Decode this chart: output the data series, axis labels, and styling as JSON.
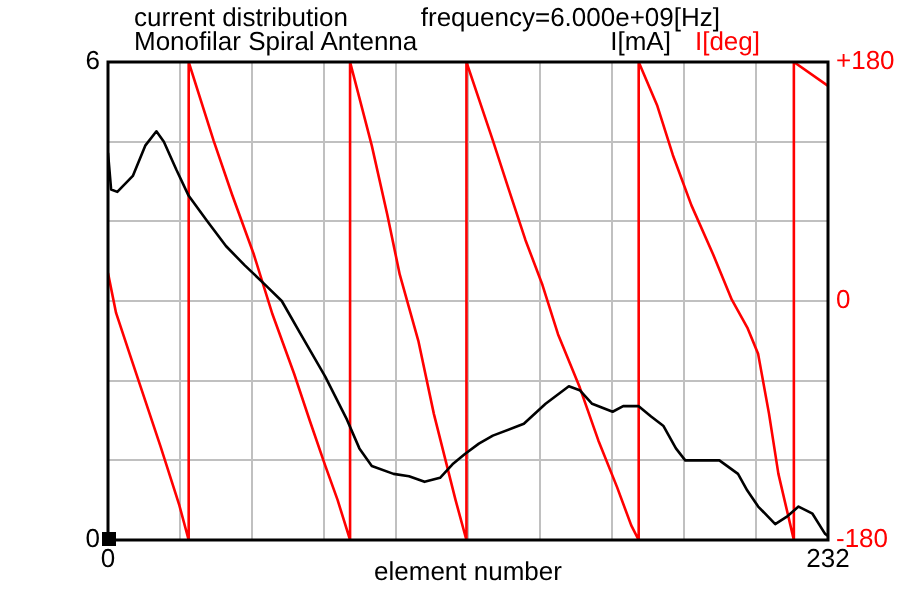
{
  "chart_data": {
    "type": "line",
    "title": "current distribution",
    "subtitle": "Monofilar Spiral Antenna",
    "annotations": [
      "frequency=6.000e+09[Hz]"
    ],
    "xlabel": "element number",
    "xlim": [
      0,
      232
    ],
    "xticks": [
      0,
      {
        "value": 23.2,
        "label": null
      },
      {
        "value": 46.4,
        "label": null
      },
      {
        "value": 69.6,
        "label": null
      },
      {
        "value": 92.8,
        "label": null
      },
      {
        "value": 116,
        "label": null
      },
      {
        "value": 139.2,
        "label": null
      },
      {
        "value": 162.4,
        "label": null
      },
      {
        "value": 185.6,
        "label": null
      },
      {
        "value": 208.8,
        "label": null
      },
      232
    ],
    "ylim": [
      0,
      6
    ],
    "yticks": [
      0,
      {
        "value": 1,
        "label": null
      },
      {
        "value": 2,
        "label": null
      },
      {
        "value": 3,
        "label": null
      },
      {
        "value": 4,
        "label": null
      },
      {
        "value": 5,
        "label": null
      },
      6
    ],
    "y2lim": [
      -180,
      180
    ],
    "y2ticks": [
      -180,
      0,
      {
        "value": 180,
        "label": "+180"
      }
    ],
    "grid": true,
    "legend": "top right",
    "marker": "none",
    "line_style": "solid",
    "series": [
      {
        "name": "I[mA]",
        "color": "#000000",
        "x": [
          0,
          1,
          3,
          8,
          12,
          15.6,
          18,
          22,
          26,
          32,
          38,
          44,
          51,
          56,
          62,
          70,
          77,
          81,
          85,
          92,
          97,
          102,
          107,
          111,
          115,
          119.5,
          124,
          134,
          141,
          148.5,
          152,
          156,
          162.6,
          166,
          171,
          175,
          179,
          183,
          186,
          192,
          197,
          203,
          206,
          209.5,
          215,
          219,
          222.5,
          227,
          231,
          232
        ],
        "values": [
          4.86,
          4.4,
          4.37,
          4.57,
          4.95,
          5.13,
          5.0,
          4.65,
          4.32,
          4.0,
          3.69,
          3.45,
          3.19,
          3.0,
          2.59,
          2.05,
          1.51,
          1.15,
          0.93,
          0.83,
          0.8,
          0.73,
          0.78,
          0.95,
          1.08,
          1.21,
          1.31,
          1.46,
          1.71,
          1.93,
          1.88,
          1.71,
          1.61,
          1.68,
          1.68,
          1.55,
          1.43,
          1.15,
          1.0,
          1.0,
          1.0,
          0.83,
          0.62,
          0.42,
          0.2,
          0.3,
          0.42,
          0.33,
          0.08,
          0.05
        ]
      },
      {
        "name": "I[deg]",
        "color": "#ff0000",
        "axis": "y2",
        "x": [
          0,
          2.6,
          7,
          12,
          17,
          23,
          26,
          26,
          34,
          40,
          47,
          53,
          60,
          65,
          70,
          74,
          78,
          78,
          85,
          90,
          94,
          100,
          105,
          112,
          115.5,
          115.5,
          124,
          129,
          134.5,
          140,
          145,
          152,
          158,
          164,
          168.6,
          171,
          171,
          177,
          182,
          188,
          195,
          201,
          206,
          209.5,
          213,
          216,
          221,
          221,
          232
        ],
        "values": [
          21,
          -9,
          -40,
          -75,
          -110,
          -154,
          -180,
          180,
          121,
          80,
          35,
          -10,
          -55,
          -90,
          -124,
          -150,
          -180,
          180,
          117,
          65,
          20,
          -30,
          -85,
          -150,
          -180,
          180,
          121,
          85,
          46,
          12,
          -25,
          -65,
          -105,
          -140,
          -169,
          -180,
          180,
          147,
          110,
          72,
          35,
          1,
          -20,
          -40,
          -85,
          -130,
          -180,
          180,
          162
        ]
      }
    ]
  }
}
